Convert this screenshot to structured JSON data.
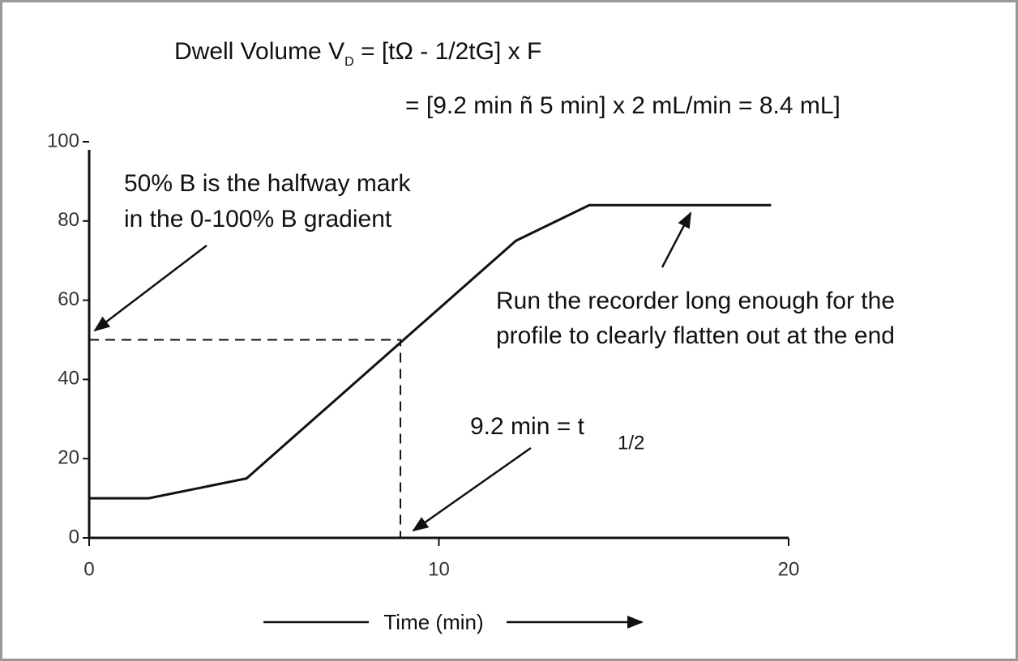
{
  "chart_data": {
    "type": "line",
    "formula": {
      "line1_start": "Dwell Volume V",
      "line1_sub": "D",
      "line1_end": " = [tΩ - 1/2tG] x F",
      "line2": "= [9.2 min ñ 5 min] x 2 mL/min = 8.4 mL]"
    },
    "annotations": {
      "halfway_1": "50% B is the halfway mark",
      "halfway_2": "in the 0-100% B gradient",
      "run_1": "Run the recorder long enough for the",
      "run_2": "profile to clearly flatten out at the end",
      "t_half": "9.2 min = t",
      "t_half_sub": "1/2"
    },
    "x_label": "Time (min)",
    "x": [
      0,
      1.7,
      4.5,
      12.2,
      14.3,
      19.5
    ],
    "series": [
      {
        "color": "#111111",
        "values": [
          10,
          10,
          15,
          75,
          84,
          84
        ]
      }
    ],
    "guide": {
      "x": 8.9,
      "y": 50
    },
    "xlim": [
      0,
      20
    ],
    "xticks": [
      0,
      10,
      20
    ],
    "ylim": [
      0,
      100
    ],
    "yticks": [
      0,
      20,
      40,
      60,
      80,
      100
    ]
  }
}
